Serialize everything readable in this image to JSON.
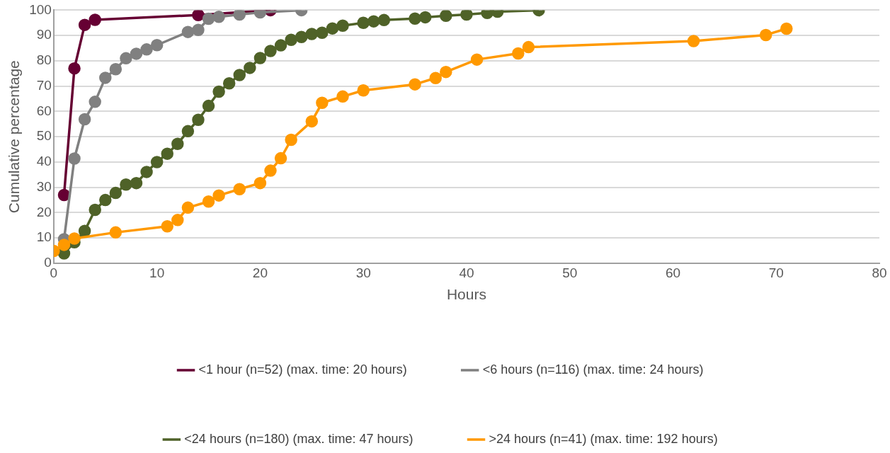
{
  "chart_data": {
    "type": "line",
    "xlabel": "Hours",
    "ylabel": "Cumulative percentage",
    "xlim": [
      0,
      80
    ],
    "xticks": [
      0,
      10,
      20,
      30,
      40,
      50,
      60,
      70,
      80
    ],
    "ylim": [
      0,
      100
    ],
    "yticks": [
      0,
      10,
      20,
      30,
      40,
      50,
      60,
      70,
      80,
      90,
      100
    ],
    "grid": "y",
    "legend": "bottom",
    "marker": "circle",
    "line_style": "solid",
    "series": [
      {
        "name": "<1 hour (n=52) (max. time: 20 hours)",
        "color": "#660033",
        "x": [
          1,
          2,
          3,
          4,
          14,
          21
        ],
        "values": [
          27,
          77,
          94.2,
          96.2,
          98.1,
          100
        ]
      },
      {
        "name": "<6 hours (n=116) (max. time: 24 hours)",
        "color": "#808080",
        "x": [
          1,
          2,
          3,
          4,
          5,
          6,
          7,
          8,
          9,
          10,
          13,
          14,
          15,
          16,
          18,
          20,
          24
        ],
        "values": [
          9.5,
          41.4,
          56.9,
          63.8,
          73.3,
          76.7,
          81,
          82.8,
          84.5,
          86.2,
          91.4,
          92.2,
          96.6,
          97.4,
          98.3,
          99.1,
          100
        ]
      },
      {
        "name": "<24 hours (n=180) (max. time: 47 hours)",
        "color": "#4f6228",
        "x": [
          1,
          2,
          3,
          4,
          5,
          6,
          7,
          8,
          9,
          10,
          11,
          12,
          13,
          14,
          15,
          16,
          17,
          18,
          19,
          20,
          21,
          22,
          23,
          24,
          25,
          26,
          27,
          28,
          30,
          31,
          32,
          35,
          36,
          38,
          40,
          42,
          43,
          47
        ],
        "values": [
          3.9,
          8.3,
          12.8,
          21.1,
          25,
          27.8,
          31.1,
          31.7,
          36.1,
          40,
          43.3,
          47.2,
          52.2,
          56.7,
          62.2,
          67.8,
          71.1,
          74.4,
          77.2,
          81.1,
          83.9,
          86.1,
          88.3,
          89.4,
          90.6,
          91.1,
          92.8,
          93.9,
          95,
          95.6,
          96.1,
          96.7,
          97.2,
          97.8,
          98.3,
          98.9,
          99.4,
          100
        ]
      },
      {
        "name": ">24 hours (n=41) (max. time: 192 hours)",
        "color": "#ff9900",
        "x": [
          0,
          1,
          2,
          6,
          11,
          12,
          13,
          15,
          16,
          18,
          20,
          21,
          22,
          23,
          25,
          26,
          28,
          30,
          35,
          37,
          38,
          41,
          45,
          46,
          62,
          69,
          71
        ],
        "values": [
          4.9,
          7.3,
          9.8,
          12.2,
          14.6,
          17.1,
          22,
          24.4,
          26.8,
          29.3,
          31.7,
          36.6,
          41.5,
          48.8,
          56.1,
          63.4,
          65.9,
          68.3,
          70.7,
          73.2,
          75.6,
          80.5,
          82.9,
          85.4,
          87.8,
          90.2,
          92.7
        ]
      }
    ]
  }
}
